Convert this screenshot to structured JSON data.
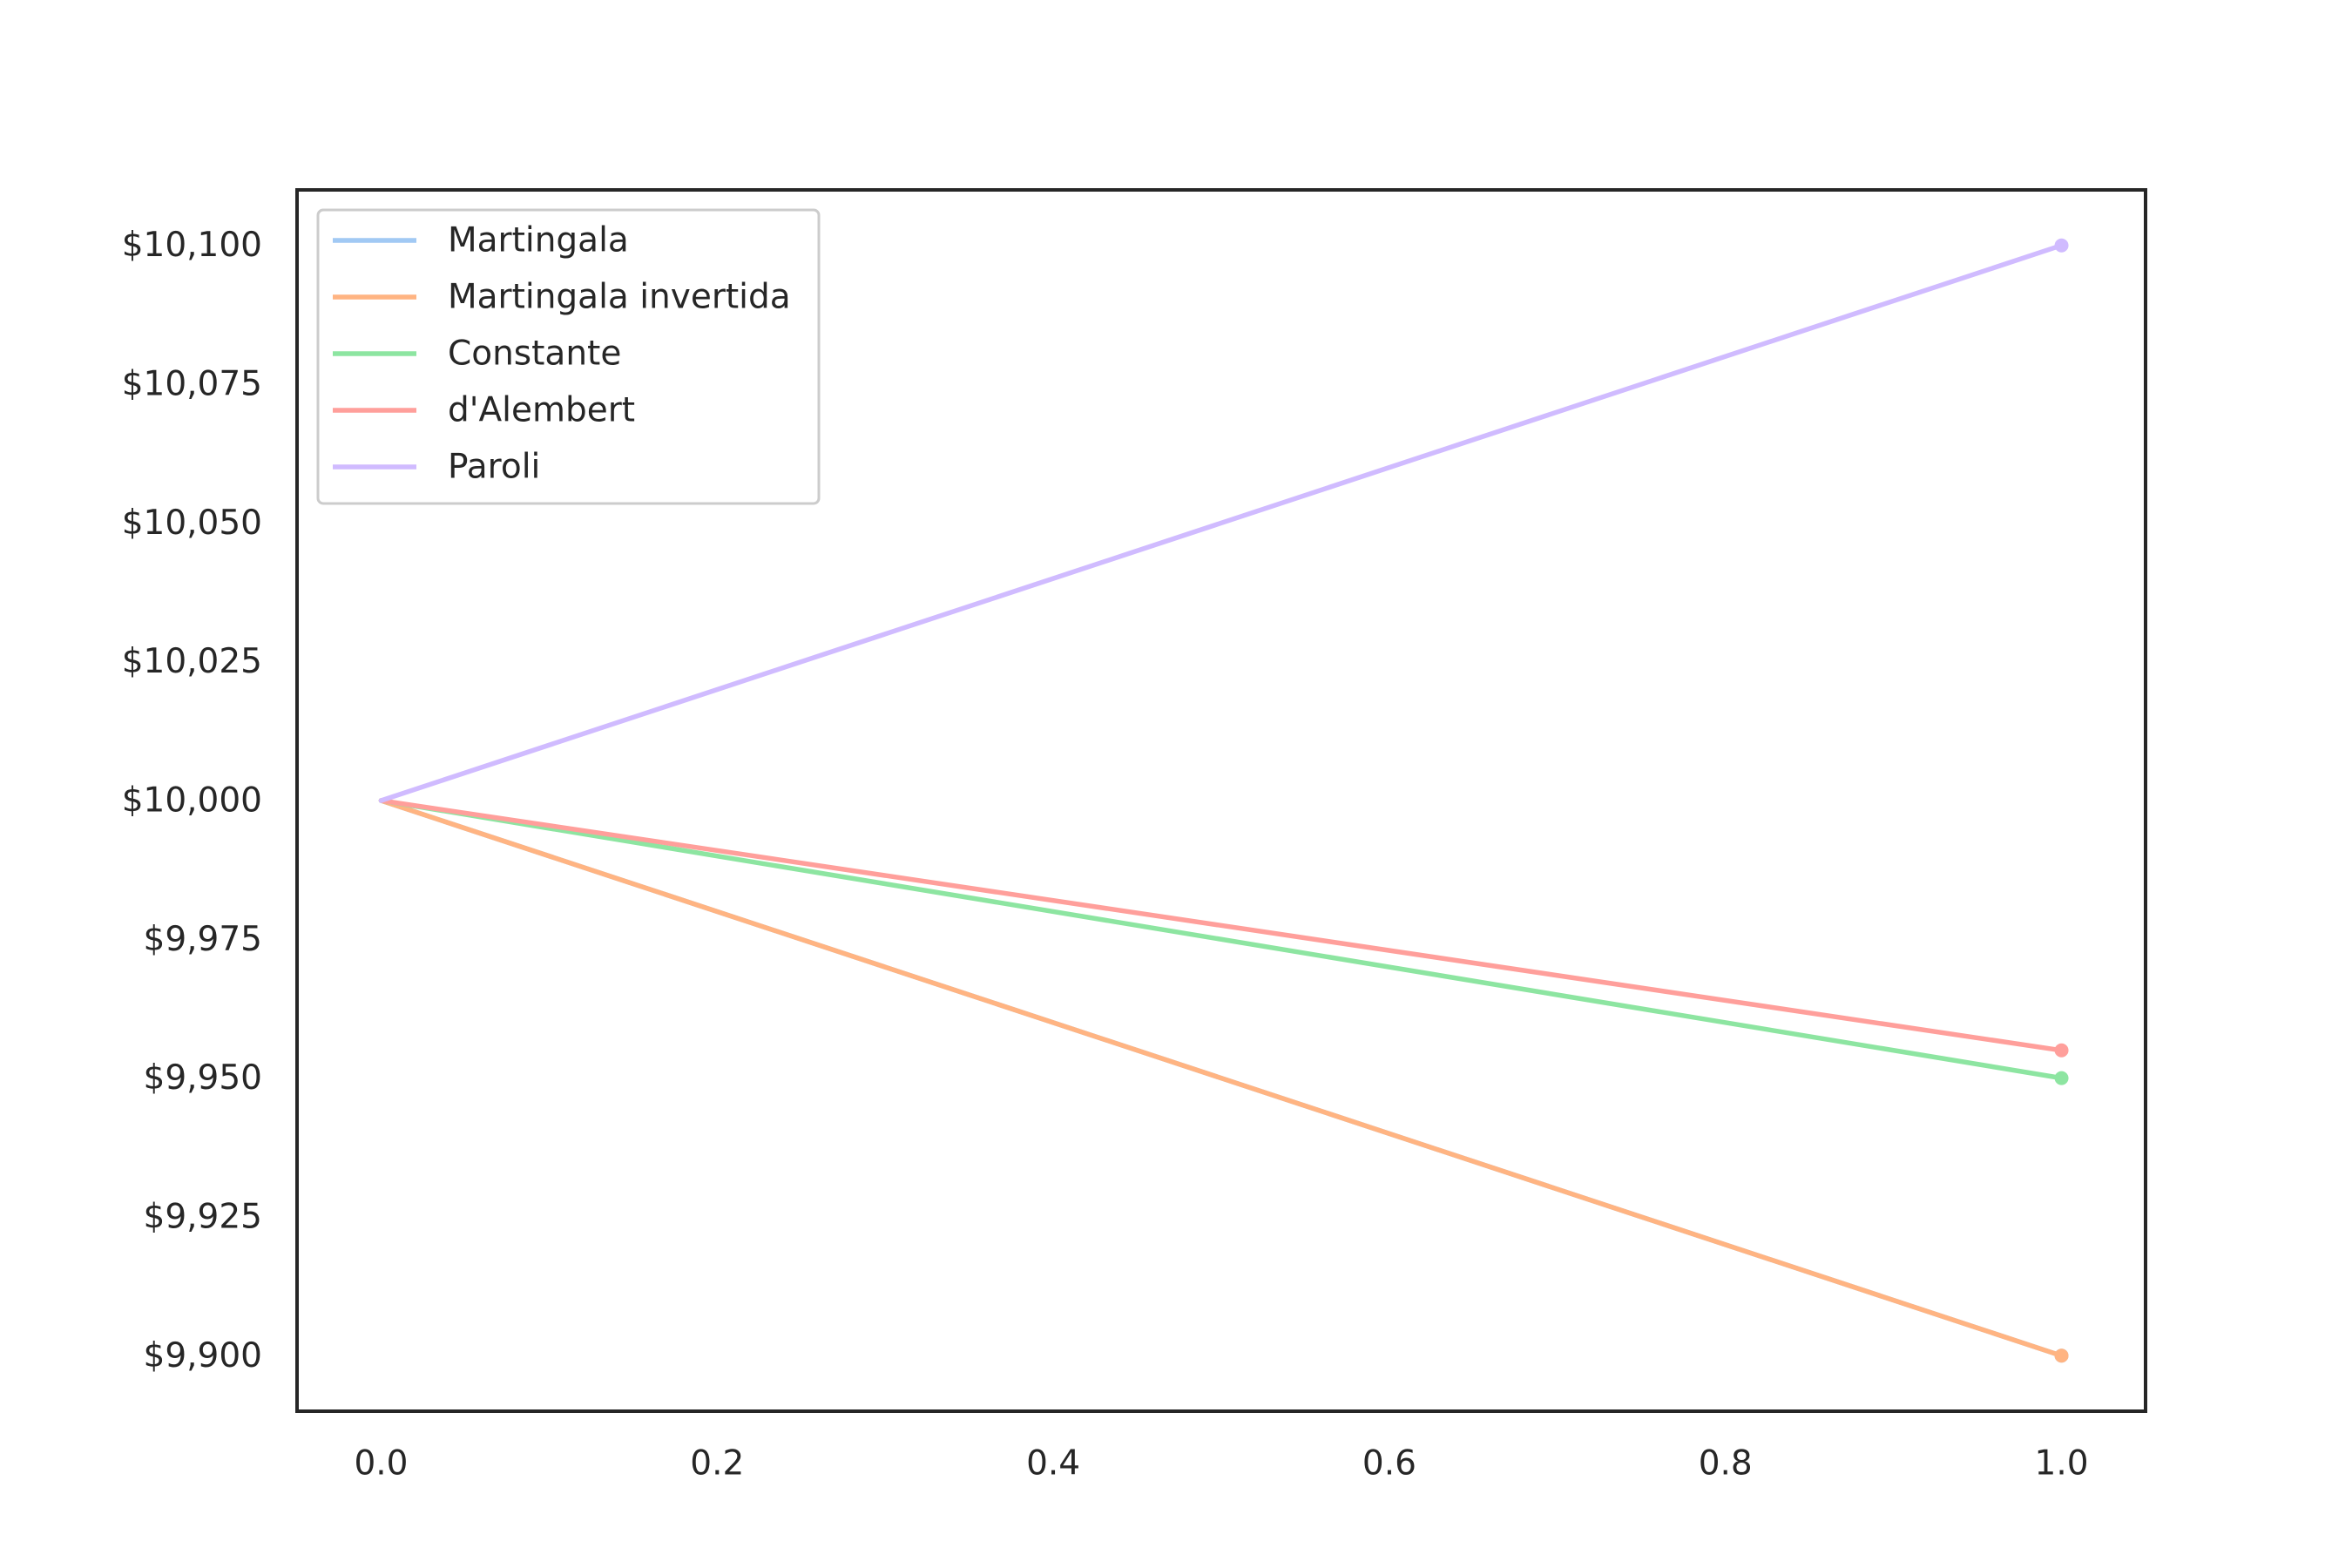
{
  "chart_data": {
    "type": "line",
    "title": "",
    "xlabel": "",
    "ylabel": "",
    "x": [
      0.0,
      1.0
    ],
    "xlim": [
      -0.05,
      1.05
    ],
    "ylim": [
      9890,
      10110
    ],
    "x_ticks": [
      0.0,
      0.2,
      0.4,
      0.6,
      0.8,
      1.0
    ],
    "x_tick_labels": [
      "0.0",
      "0.2",
      "0.4",
      "0.6",
      "0.8",
      "1.0"
    ],
    "y_ticks": [
      9900,
      9925,
      9950,
      9975,
      10000,
      10025,
      10050,
      10075,
      10100
    ],
    "y_tick_labels": [
      "$9,900",
      "$9,925",
      "$9,950",
      "$9,975",
      "$10,000",
      "$10,025",
      "$10,050",
      "$10,075",
      "$10,100"
    ],
    "grid": false,
    "legend_position": "top-left",
    "series": [
      {
        "name": "Martingala",
        "color": "#a1c9f4",
        "values": [
          10000,
          9900
        ]
      },
      {
        "name": "Martingala invertida",
        "color": "#ffb482",
        "values": [
          10000,
          9900
        ]
      },
      {
        "name": "Constante",
        "color": "#8de5a1",
        "values": [
          10000,
          9950
        ]
      },
      {
        "name": "d'Alembert",
        "color": "#ff9f9b",
        "values": [
          10000,
          9955
        ]
      },
      {
        "name": "Paroli",
        "color": "#d0bbff",
        "values": [
          10000,
          10100
        ]
      }
    ]
  }
}
